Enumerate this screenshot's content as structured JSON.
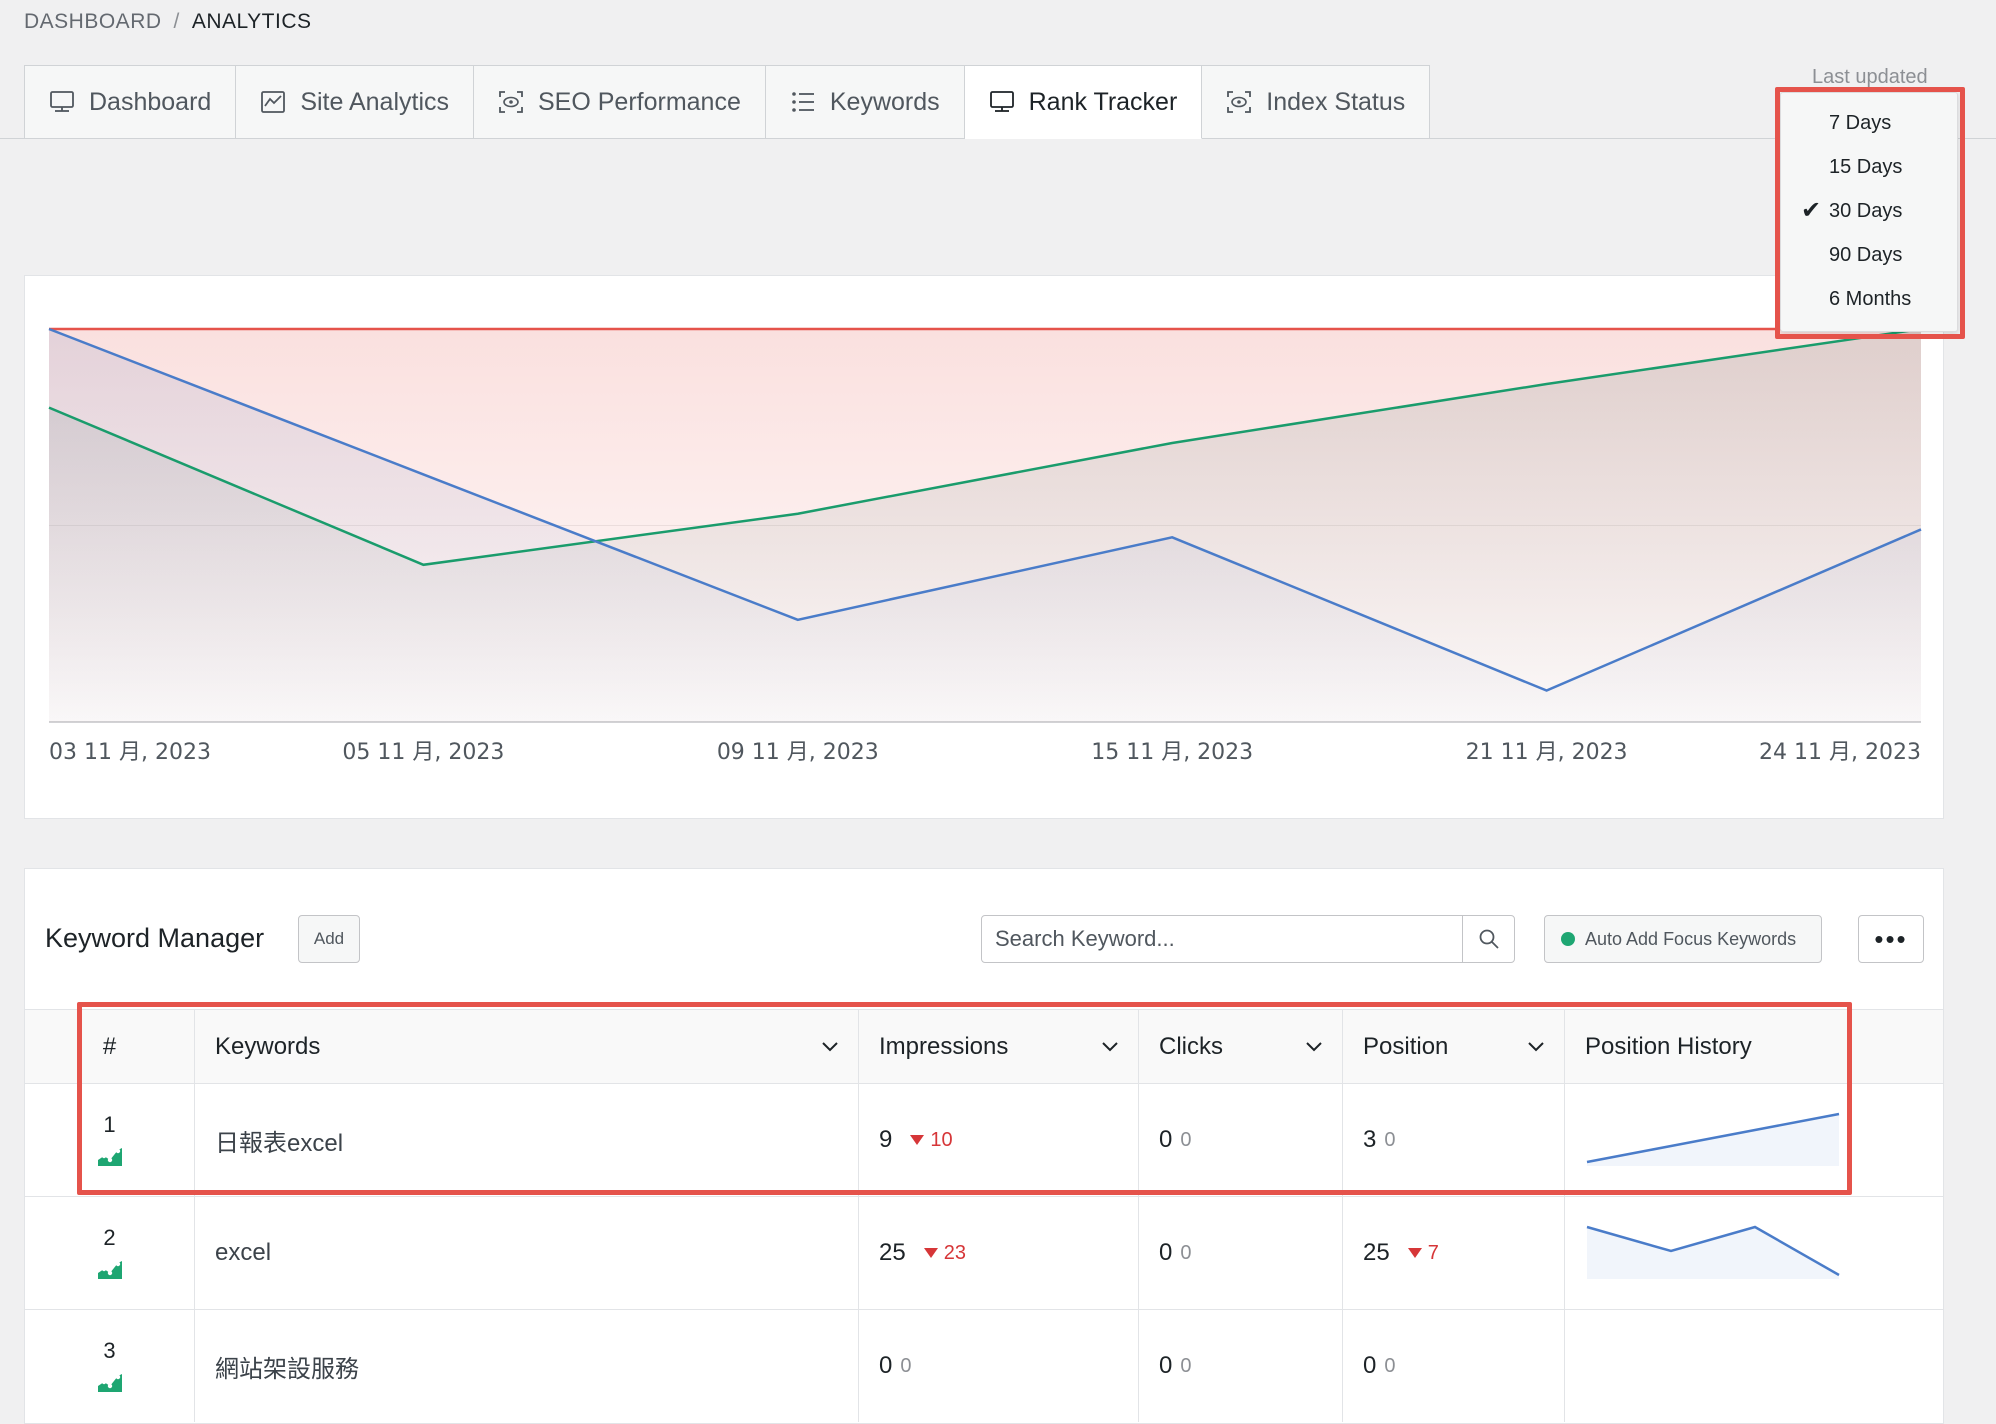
{
  "breadcrumb": {
    "root": "DASHBOARD",
    "separator": "/",
    "current": "ANALYTICS"
  },
  "tabs": [
    {
      "label": "Dashboard",
      "icon": "monitor-icon",
      "active": false
    },
    {
      "label": "Site Analytics",
      "icon": "chart-icon",
      "active": false
    },
    {
      "label": "SEO Performance",
      "icon": "eye-scan-icon",
      "active": false
    },
    {
      "label": "Keywords",
      "icon": "list-icon",
      "active": false
    },
    {
      "label": "Rank Tracker",
      "icon": "monitor-icon",
      "active": true
    },
    {
      "label": "Index Status",
      "icon": "eye-scan-icon",
      "active": false
    }
  ],
  "last_updated_label": "Last updated",
  "range_dropdown": {
    "options": [
      "7 Days",
      "15 Days",
      "30 Days",
      "90 Days",
      "6 Months"
    ],
    "selected": "30 Days"
  },
  "chart_data": {
    "type": "area",
    "x": [
      "03 11 月, 2023",
      "05 11 月, 2023",
      "09 11 月, 2023",
      "15 11 月, 2023",
      "21 11 月, 2023",
      "24 11 月, 2023"
    ],
    "series": [
      {
        "color": "#e5534b",
        "values": [
          0,
          0,
          0,
          0,
          0,
          0
        ]
      },
      {
        "color": "#1a9c6c",
        "values": [
          20,
          60,
          47,
          29,
          14,
          0
        ]
      },
      {
        "color": "#4a7cc9",
        "values": [
          0,
          37,
          74,
          53,
          92,
          51
        ]
      }
    ],
    "ylim": [
      100,
      0
    ],
    "grid": true
  },
  "keyword_manager": {
    "title": "Keyword Manager",
    "add_label": "Add",
    "search_placeholder": "Search Keyword...",
    "auto_add_label": "Auto Add Focus Keywords",
    "more_label": "•••",
    "columns": [
      "#",
      "Keywords",
      "Impressions",
      "Clicks",
      "Position",
      "Position History"
    ],
    "rows": [
      {
        "num": "1",
        "keyword": "日報表excel",
        "impressions": "9",
        "impressions_delta": "10",
        "impressions_dir": "down",
        "clicks": "0",
        "clicks_delta": "0",
        "position": "3",
        "position_delta": "0",
        "position_dir": "none",
        "history": [
          5,
          4,
          3,
          2,
          1
        ]
      },
      {
        "num": "2",
        "keyword": "excel",
        "impressions": "25",
        "impressions_delta": "23",
        "impressions_dir": "down",
        "clicks": "0",
        "clicks_delta": "0",
        "position": "25",
        "position_delta": "7",
        "position_dir": "down",
        "history": [
          3,
          4,
          3,
          5
        ]
      },
      {
        "num": "3",
        "keyword": "網站架設服務",
        "impressions": "0",
        "impressions_delta": "0",
        "impressions_dir": "none",
        "clicks": "0",
        "clicks_delta": "0",
        "position": "0",
        "position_delta": "0",
        "position_dir": "none",
        "history": []
      }
    ]
  }
}
